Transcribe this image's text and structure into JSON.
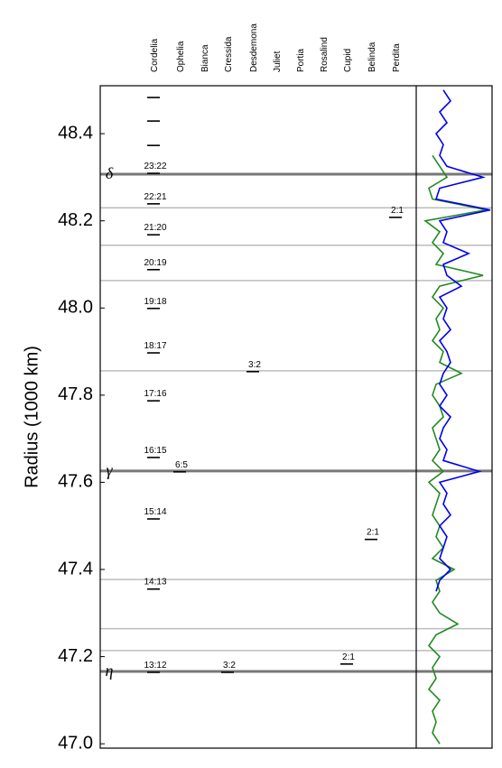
{
  "chart_data": {
    "type": "resonance",
    "y_label": "Radius (1000 km)",
    "ylim": [
      46.99,
      48.51
    ],
    "yticks": [
      {
        "value": 47.0,
        "label": "47.0"
      },
      47.2,
      47.4,
      47.6,
      47.8,
      {
        "value": 48.0,
        "label": "48.0"
      },
      48.2,
      48.4
    ],
    "moons": [
      {
        "name": "Cordelia",
        "resonances": [
          {
            "radius": 48.483,
            "label": null
          },
          {
            "radius": 48.429,
            "label": null
          },
          {
            "radius": 48.373,
            "label": null
          },
          {
            "radius": 48.309,
            "label": "23:22"
          },
          {
            "radius": 48.239,
            "label": "22:21"
          },
          {
            "radius": 48.168,
            "label": "21:20"
          },
          {
            "radius": 48.088,
            "label": "20:19"
          },
          {
            "radius": 47.999,
            "label": "19:18"
          },
          {
            "radius": 47.897,
            "label": "18:17"
          },
          {
            "radius": 47.787,
            "label": "17:16"
          },
          {
            "radius": 47.657,
            "label": "16:15"
          },
          {
            "radius": 47.516,
            "label": "15:14"
          },
          {
            "radius": 47.355,
            "label": "14:13"
          },
          {
            "radius": 47.164,
            "label": "13:12"
          }
        ]
      },
      {
        "name": "Ophelia",
        "resonances": [
          {
            "radius": 47.624,
            "label": "6:5"
          }
        ]
      },
      {
        "name": "Bianca",
        "resonances": []
      },
      {
        "name": "Cressida",
        "resonances": [
          {
            "radius": 47.164,
            "label": "3:2"
          }
        ]
      },
      {
        "name": "Desdemona",
        "resonances": [
          {
            "radius": 47.854,
            "label": "3:2"
          }
        ]
      },
      {
        "name": "Juliet",
        "resonances": []
      },
      {
        "name": "Portia",
        "resonances": []
      },
      {
        "name": "Rosalind",
        "resonances": []
      },
      {
        "name": "Cupid",
        "resonances": [
          {
            "radius": 47.183,
            "label": "2:1"
          }
        ]
      },
      {
        "name": "Belinda",
        "resonances": [
          {
            "radius": 47.469,
            "label": "2:1"
          }
        ]
      },
      {
        "name": "Perdita",
        "resonances": [
          {
            "radius": 48.208,
            "label": "2:1"
          }
        ]
      }
    ],
    "rings": [
      {
        "name": "δ",
        "radius": 48.307
      },
      {
        "name": "γ",
        "radius": 47.626
      },
      {
        "name": "η",
        "radius": 47.166
      }
    ],
    "minor_lines": [
      48.23,
      48.144,
      48.063,
      47.856,
      47.377,
      47.264,
      47.214
    ],
    "profiles": {
      "xlim": [
        0,
        1
      ],
      "radius": [
        48.5,
        48.475,
        48.45,
        48.425,
        48.4,
        48.375,
        48.35,
        48.325,
        48.3,
        48.275,
        48.25,
        48.225,
        48.2,
        48.175,
        48.15,
        48.125,
        48.1,
        48.075,
        48.05,
        48.025,
        48.0,
        47.975,
        47.95,
        47.925,
        47.9,
        47.875,
        47.85,
        47.825,
        47.8,
        47.775,
        47.75,
        47.725,
        47.7,
        47.675,
        47.65,
        47.625,
        47.6,
        47.575,
        47.55,
        47.525,
        47.5,
        47.475,
        47.45,
        47.425,
        47.4,
        47.375,
        47.35,
        47.325,
        47.3,
        47.275,
        47.25,
        47.225,
        47.2,
        47.175,
        47.15,
        47.125,
        47.1,
        47.075,
        47.05,
        47.025,
        47.0
      ],
      "series": [
        {
          "color": "#228b22",
          "values": [
            null,
            null,
            null,
            null,
            null,
            null,
            0.2,
            0.3,
            0.4,
            0.15,
            0.2,
            0.95,
            0.1,
            0.3,
            0.2,
            0.35,
            0.25,
            0.9,
            0.3,
            0.2,
            0.35,
            0.25,
            0.3,
            0.2,
            0.35,
            0.3,
            0.6,
            0.25,
            0.2,
            0.3,
            0.35,
            0.2,
            0.25,
            0.3,
            0.2,
            0.35,
            0.15,
            0.3,
            0.25,
            0.2,
            0.3,
            0.25,
            0.35,
            0.2,
            0.5,
            0.25,
            0.3,
            0.2,
            0.3,
            0.55,
            0.25,
            0.15,
            0.3,
            0.2,
            0.25,
            0.15,
            0.3,
            0.2,
            0.25,
            0.2,
            0.3
          ]
        },
        {
          "color": "#0000ee",
          "values": [
            0.35,
            0.45,
            0.3,
            0.4,
            0.25,
            0.35,
            0.3,
            0.4,
            0.9,
            0.3,
            0.25,
            1.0,
            0.3,
            0.4,
            0.35,
            0.7,
            0.35,
            0.4,
            0.6,
            0.3,
            0.4,
            0.35,
            0.45,
            0.3,
            0.4,
            0.45,
            0.35,
            0.3,
            0.4,
            0.3,
            0.45,
            0.35,
            0.3,
            0.4,
            0.35,
            0.85,
            0.3,
            0.4,
            0.35,
            0.45,
            0.3,
            0.4,
            0.35,
            0.3,
            0.45,
            0.3,
            0.25,
            null,
            null,
            null,
            null,
            null,
            null,
            null,
            null,
            null,
            null,
            null,
            null,
            null,
            null
          ]
        }
      ]
    }
  }
}
